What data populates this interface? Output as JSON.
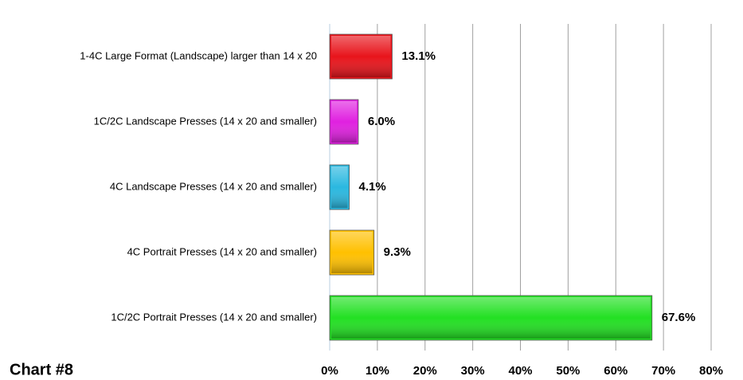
{
  "chart_data": {
    "type": "barh",
    "note": "Chart #8",
    "categories": [
      "1-4C Large Format (Landscape) larger than 14 x 20",
      "1C/2C Landscape Presses (14 x 20 and smaller)",
      "4C Landscape Presses (14  x 20 and smaller)",
      "4C Portrait Presses (14 x 20 and smaller)",
      "1C/2C Portrait Presses (14 x 20 and smaller)"
    ],
    "values": [
      13.1,
      6.0,
      4.1,
      9.3,
      67.6
    ],
    "value_labels": [
      "13.1%",
      "6.0%",
      "4.1%",
      "9.3%",
      "67.6%"
    ],
    "colors": [
      "#e8141b",
      "#e020e0",
      "#2ab8e0",
      "#ffc000",
      "#22e022"
    ],
    "xlim": [
      0,
      80
    ],
    "xticks": [
      {
        "value": 0,
        "label": "0%"
      },
      {
        "value": 10,
        "label": "10%"
      },
      {
        "value": 20,
        "label": "20%"
      },
      {
        "value": 30,
        "label": "30%"
      },
      {
        "value": 40,
        "label": "40%"
      },
      {
        "value": 50,
        "label": "50%"
      },
      {
        "value": 60,
        "label": "60%"
      },
      {
        "value": 70,
        "label": "70%"
      },
      {
        "value": 80,
        "label": "80%"
      }
    ],
    "grid": true
  }
}
